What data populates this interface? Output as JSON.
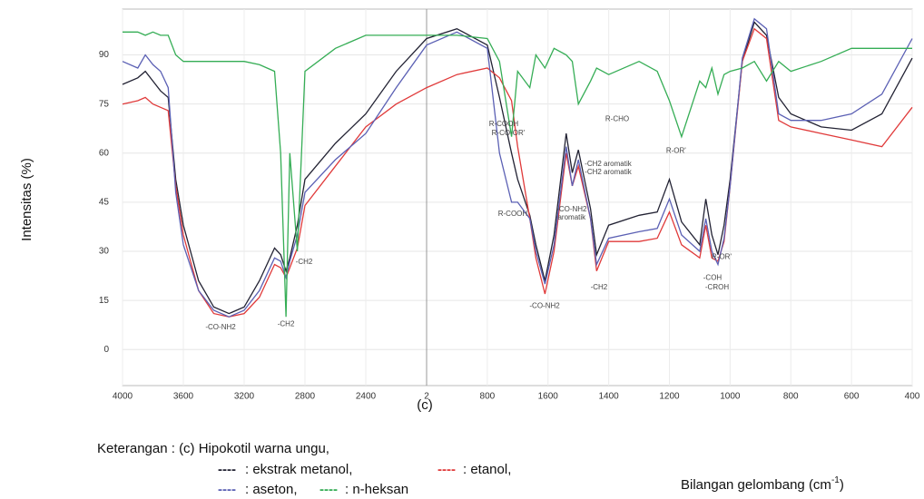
{
  "chart_data": {
    "type": "line",
    "ylabel": "Intensitas (%)",
    "xlabel": "Bilangan  gelombang (cm",
    "xlabel_sup": "-1",
    "xlabel_end": ")",
    "panel_label": "(c)",
    "legend_title": "Keterangan : (c) Hipokotil warna ungu,",
    "legend_marker": "----",
    "xlim": [
      4000,
      400
    ],
    "xbreak": 2000,
    "ylim": [
      -11,
      104
    ],
    "yticks": [
      0,
      15,
      30,
      45,
      60,
      75,
      90
    ],
    "xticks": [
      4000,
      3600,
      3200,
      2800,
      2400,
      {
        "value": 2000,
        "label": "2"
      },
      {
        "value": 1800,
        "label": "800"
      },
      1600,
      1400,
      1200,
      1000,
      800,
      600,
      400
    ],
    "grid": true,
    "x": [
      4000,
      3900,
      3850,
      3800,
      3750,
      3700,
      3650,
      3600,
      3500,
      3400,
      3300,
      3200,
      3100,
      3000,
      2960,
      2925,
      2900,
      2850,
      2800,
      2600,
      2400,
      2200,
      2000,
      1900,
      1800,
      1760,
      1720,
      1700,
      1660,
      1640,
      1610,
      1580,
      1540,
      1520,
      1500,
      1460,
      1440,
      1400,
      1300,
      1240,
      1200,
      1160,
      1100,
      1080,
      1060,
      1040,
      1020,
      1000,
      960,
      920,
      880,
      840,
      800,
      700,
      600,
      500,
      400
    ],
    "series": [
      {
        "name": ": ekstrak  metanol,",
        "color": "#222233",
        "values": [
          81,
          83,
          85,
          82,
          79,
          77,
          52,
          38,
          21,
          13,
          11,
          13,
          21,
          31,
          29,
          24,
          28,
          38,
          52,
          63,
          72,
          85,
          95,
          98,
          93,
          77,
          60,
          52,
          41,
          32,
          21,
          35,
          66,
          54,
          61,
          43,
          29,
          38,
          41,
          42,
          52,
          39,
          32,
          46,
          35,
          29,
          38,
          52,
          88,
          100,
          96,
          77,
          72,
          68,
          67,
          72,
          89
        ]
      },
      {
        "name": ": etanol,",
        "color": "#e03a3a",
        "values": [
          75,
          76,
          77,
          75,
          74,
          73,
          50,
          35,
          18,
          11,
          10,
          11,
          16,
          26,
          25,
          22,
          25,
          31,
          44,
          56,
          68,
          75,
          80,
          84,
          86,
          83,
          76,
          62,
          40,
          28,
          17,
          30,
          60,
          50,
          56,
          40,
          24,
          33,
          33,
          34,
          42,
          32,
          28,
          38,
          28,
          27,
          33,
          50,
          88,
          98,
          95,
          70,
          68,
          66,
          64,
          62,
          74
        ]
      },
      {
        "name": ": aseton,",
        "color": "#5b60b4",
        "values": [
          88,
          86,
          90,
          87,
          85,
          80,
          48,
          32,
          18,
          12,
          10,
          12,
          18,
          28,
          27,
          22,
          27,
          35,
          48,
          58,
          66,
          80,
          93,
          97,
          92,
          60,
          45,
          45,
          40,
          30,
          20,
          32,
          62,
          50,
          58,
          40,
          26,
          34,
          36,
          37,
          46,
          35,
          30,
          40,
          30,
          26,
          34,
          50,
          89,
          101,
          98,
          72,
          70,
          70,
          72,
          78,
          95
        ]
      },
      {
        "name": ": n-heksan",
        "color": "#35ad55",
        "values": [
          97,
          97,
          96,
          97,
          96,
          96,
          90,
          88,
          88,
          88,
          88,
          88,
          87,
          85,
          60,
          10,
          60,
          30,
          85,
          92,
          96,
          96,
          96,
          96,
          95,
          88,
          65,
          85,
          80,
          90,
          86,
          92,
          90,
          88,
          75,
          82,
          86,
          84,
          88,
          85,
          76,
          65,
          82,
          80,
          86,
          78,
          84,
          85,
          86,
          88,
          82,
          88,
          85,
          88,
          92,
          92,
          92
        ]
      }
    ],
    "annotations": [
      {
        "text": "-CO-NH2",
        "x": 3355,
        "y": 6.7
      },
      {
        "text": "-CH2",
        "x": 2925,
        "y": 7.8
      },
      {
        "text": "-CH2",
        "x": 2806,
        "y": 26.7
      },
      {
        "text": "R-COOH",
        "x": 1746,
        "y": 68.9
      },
      {
        "text": "R-CO-OR'",
        "x": 1731,
        "y": 66.1
      },
      {
        "text": "R-COOH",
        "x": 1716,
        "y": 41.4
      },
      {
        "text": "-CO-NH2",
        "x": 1522,
        "y": 42.8
      },
      {
        "text": "aromatik",
        "x": 1522,
        "y": 40.3
      },
      {
        "text": "-CO-NH2",
        "x": 1611,
        "y": 13.3
      },
      {
        "text": "-CH2",
        "x": 1432,
        "y": 18.9
      },
      {
        "text": "-CH2 aromatik",
        "x": 1402,
        "y": 56.7
      },
      {
        "text": "-CH2 aromatik",
        "x": 1402,
        "y": 54.2
      },
      {
        "text": "R-CHO",
        "x": 1372,
        "y": 70.3
      },
      {
        "text": "R-OR'",
        "x": 1178,
        "y": 60.6
      },
      {
        "text": "R-OR'",
        "x": 1028,
        "y": 28.3
      },
      {
        "text": "-COH",
        "x": 1058,
        "y": 21.9
      },
      {
        "text": "-CROH",
        "x": 1043,
        "y": 18.9
      }
    ]
  }
}
